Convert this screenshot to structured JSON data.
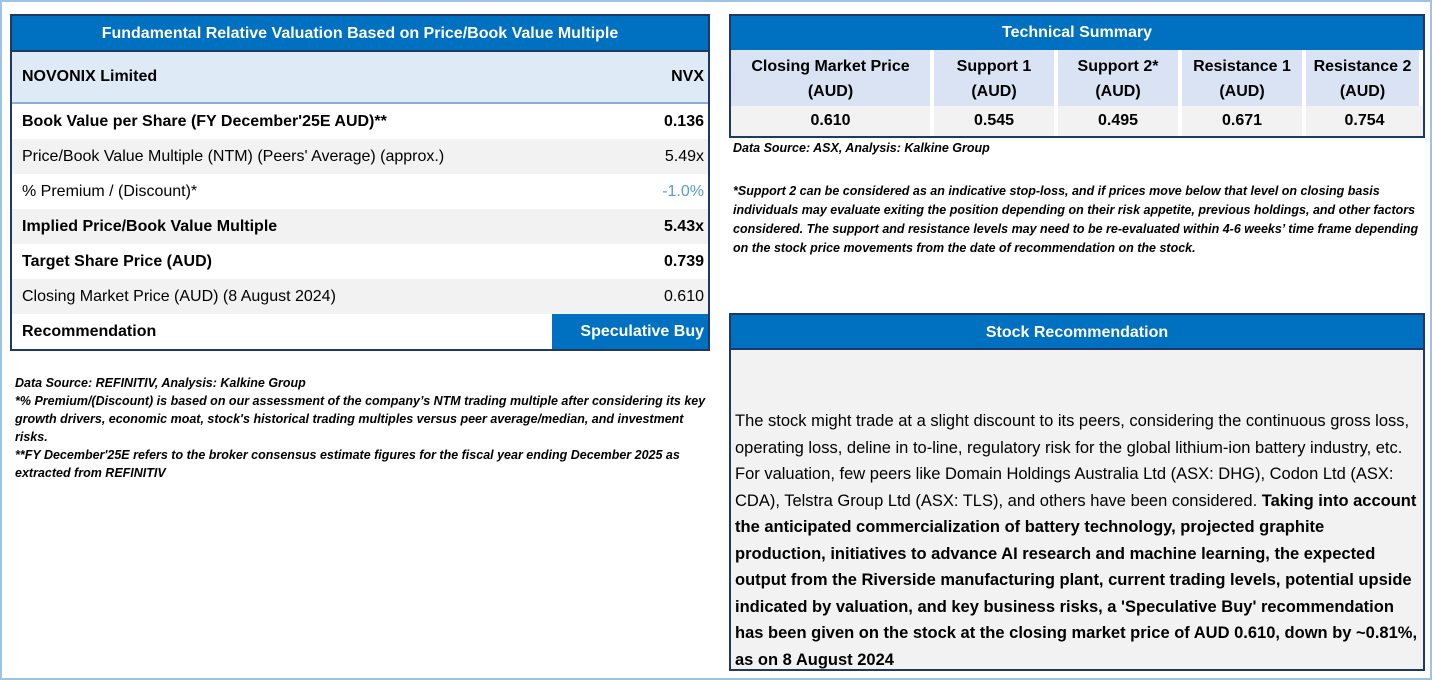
{
  "valuation": {
    "title": "Fundamental Relative Valuation Based on Price/Book Value Multiple",
    "company": "NOVONIX Limited",
    "ticker": "NVX",
    "rows": [
      {
        "label": "Book Value per Share (FY December'25E AUD)**",
        "value": "0.136"
      },
      {
        "label": "Price/Book Value Multiple (NTM)  (Peers' Average) (approx.)",
        "value": "5.49x"
      },
      {
        "label": "% Premium / (Discount)*",
        "value": "-1.0%"
      },
      {
        "label": "Implied Price/Book Value Multiple",
        "value": "5.43x"
      },
      {
        "label": "Target Share Price (AUD)",
        "value": "0.739"
      },
      {
        "label": "Closing Market Price (AUD) (8 August 2024)",
        "value": "0.610"
      },
      {
        "label": "Recommendation",
        "value": "Speculative Buy"
      }
    ],
    "notes": [
      "Data Source: REFINITIV, Analysis: Kalkine Group",
      "*% Premium/(Discount) is based on our assessment of the company’s NTM trading multiple after considering its key growth drivers, economic moat, stock's historical trading multiples versus peer average/median, and investment risks.",
      "**FY December'25E refers to the broker consensus estimate figures for the fiscal year ending December 2025 as extracted from REFINITIV"
    ]
  },
  "technical": {
    "title": "Technical Summary",
    "headers": [
      "Closing Market Price (AUD)",
      "Support 1 (AUD)",
      "Support 2* (AUD)",
      "Resistance 1 (AUD)",
      "Resistance 2 (AUD)"
    ],
    "values": [
      "0.610",
      "0.545",
      "0.495",
      "0.671",
      "0.754"
    ],
    "source": "Data Source: ASX, Analysis: Kalkine Group",
    "note": "*Support 2 can be considered as an indicative stop-loss, and if prices move below that level on closing basis individuals may evaluate exiting the position depending on their risk appetite, previous holdings, and other factors considered. The support and resistance levels may need to be re-evaluated within 4-6 weeks’ time frame depending on the stock price movements from the date of recommendation on the stock."
  },
  "recommendation": {
    "title": "Stock Recommendation",
    "text": "The stock might trade at a slight discount to its peers, considering the continuous gross loss, operating loss, deline in to-line, regulatory risk for the global lithium-ion battery industry, etc. For valuation, few peers like Domain Holdings Australia Ltd (ASX: DHG), Codon Ltd (ASX: CDA), Telstra Group Ltd (ASX: TLS), and others have been considered. ",
    "bold_text": "Taking into account the anticipated commercialization of battery technology, projected graphite production, initiatives to advance AI research and machine learning, the expected output from the Riverside manufacturing plant, current trading levels, potential upside indicated by valuation, and key business risks, a 'Speculative Buy' recommendation has been given on the stock at the closing market price of AUD 0.610, down by ~0.81%, as on 8 August 2024"
  }
}
